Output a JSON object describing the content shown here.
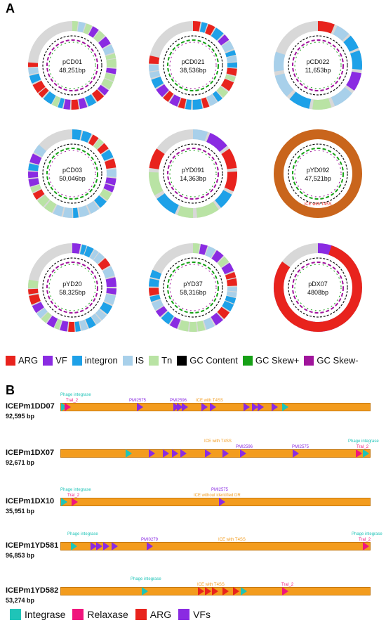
{
  "panelA": {
    "letter": "A",
    "plasmids": [
      {
        "name": "pCD01",
        "size": "48,251bp",
        "caption": ""
      },
      {
        "name": "pCD021",
        "size": "38,536bp",
        "caption": ""
      },
      {
        "name": "pCD022",
        "size": "11,653bp",
        "caption": ""
      },
      {
        "name": "pCD03",
        "size": "50,046bp",
        "caption": ""
      },
      {
        "name": "pYD091",
        "size": "14,363bp",
        "caption": ""
      },
      {
        "name": "pYD092",
        "size": "47,521bp",
        "caption": "ICE with T4SS"
      },
      {
        "name": "pYD20",
        "size": "58,325bp",
        "caption": ""
      },
      {
        "name": "pYD37",
        "size": "58,316bp",
        "caption": ""
      },
      {
        "name": "pDX07",
        "size": "4808bp",
        "caption": ""
      }
    ],
    "legend": [
      {
        "label": "ARG",
        "color": "#e8231d"
      },
      {
        "label": "VF",
        "color": "#8a2be2"
      },
      {
        "label": "integron",
        "color": "#1ea1e8"
      },
      {
        "label": "IS",
        "color": "#a8d0ea"
      },
      {
        "label": "Tn",
        "color": "#b9e3a4"
      },
      {
        "label": "GC Content",
        "color": "#000000"
      },
      {
        "label": "GC Skew+",
        "color": "#16a016"
      },
      {
        "label": "GC Skew-",
        "color": "#a0149b"
      }
    ]
  },
  "panelB": {
    "letter": "B",
    "ices": [
      {
        "name": "ICEPm1DD07",
        "size": "92,595 bp",
        "note": "ICE with T4SS"
      },
      {
        "name": "ICEPm1DX07",
        "size": "92,671 bp",
        "note": "ICE with T4SS"
      },
      {
        "name": "ICEPm1DX10",
        "size": "35,951 bp",
        "note": "ICE without identified DR"
      },
      {
        "name": "ICEPm1YD581",
        "size": "96,853 bp",
        "note": "ICE with T4SS"
      },
      {
        "name": "ICEPm1YD582",
        "size": "53,274 bp",
        "note": "ICE with T4SS"
      }
    ],
    "labels": {
      "phage": "Phage integrase",
      "tral": "TraI_2",
      "pmi2575": "PMI2575",
      "pmi2596": "PMI2596",
      "pmi0279": "PMI0279"
    },
    "legend": [
      {
        "label": "Integrase",
        "color": "#1fc4b8"
      },
      {
        "label": "Relaxase",
        "color": "#f0157d"
      },
      {
        "label": "ARG",
        "color": "#e8231d"
      },
      {
        "label": "VFs",
        "color": "#8a2be2"
      }
    ]
  }
}
